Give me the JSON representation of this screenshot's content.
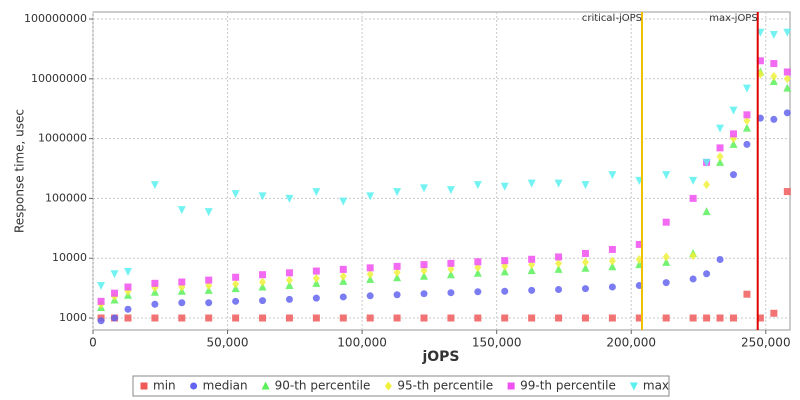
{
  "chart_data": {
    "type": "scatter",
    "x_label": "jOPS",
    "y_label": "Response time, usec",
    "log_y": true,
    "grid": true,
    "legend": "bottom",
    "xlim": [
      0,
      259000
    ],
    "ylim": [
      630,
      131000000
    ],
    "xticks": [
      {
        "value": 0,
        "label": "0"
      },
      {
        "value": 50000,
        "label": "50,000"
      },
      {
        "value": 100000,
        "label": "100,000"
      },
      {
        "value": 150000,
        "label": "150,000"
      },
      {
        "value": 200000,
        "label": "200,000"
      },
      {
        "value": 250000,
        "label": "250,000"
      }
    ],
    "yticks": [
      1000,
      10000,
      100000,
      1000000,
      10000000,
      100000000
    ],
    "annotations": [
      {
        "label": "critical-jOPS",
        "x": 204000,
        "color": "#f0c000"
      },
      {
        "label": "max-jOPS",
        "x": 247000,
        "color": "#e00000"
      }
    ],
    "x": [
      3000,
      8000,
      13000,
      23000,
      33000,
      43000,
      53000,
      63000,
      73000,
      83000,
      93000,
      103000,
      113000,
      123000,
      133000,
      143000,
      153000,
      163000,
      173000,
      183000,
      193000,
      203000,
      213000,
      223000,
      228000,
      233000,
      238000,
      243000,
      248000,
      253000,
      258000
    ],
    "series": [
      {
        "name": "min",
        "color": "#f05a5a",
        "marker": "square",
        "values": [
          1000,
          1000,
          1000,
          1000,
          1000,
          1000,
          1000,
          1000,
          1000,
          1000,
          1000,
          1000,
          1000,
          1000,
          1000,
          1000,
          1000,
          1000,
          1000,
          1000,
          1000,
          1000,
          1000,
          1000,
          1000,
          1000,
          1000,
          2500,
          1000,
          1200,
          130000
        ]
      },
      {
        "name": "median",
        "color": "#6464f0",
        "marker": "circle",
        "values": [
          900,
          1000,
          1400,
          1700,
          1800,
          1800,
          1900,
          1950,
          2050,
          2150,
          2250,
          2350,
          2450,
          2550,
          2650,
          2750,
          2800,
          2900,
          3000,
          3100,
          3300,
          3500,
          3900,
          4500,
          5500,
          9500,
          250000,
          800000,
          2200000,
          2100000,
          2700000
        ]
      },
      {
        "name": "90-th percentile",
        "color": "#5af05a",
        "marker": "triangle",
        "values": [
          1500,
          2000,
          2400,
          2700,
          2800,
          2900,
          3100,
          3300,
          3500,
          3800,
          4100,
          4400,
          4700,
          5000,
          5300,
          5600,
          5900,
          6200,
          6500,
          6800,
          7200,
          7800,
          8500,
          12000,
          60000,
          400000,
          800000,
          1500000,
          13000000,
          9000000,
          7000000
        ]
      },
      {
        "name": "95-th percentile",
        "color": "#f0f03c",
        "marker": "diamond",
        "values": [
          1700,
          2300,
          2800,
          3200,
          3300,
          3500,
          3700,
          4000,
          4300,
          4600,
          5000,
          5400,
          5800,
          6200,
          6600,
          7000,
          7400,
          7800,
          8200,
          8600,
          9000,
          9500,
          10500,
          11000,
          170000,
          500000,
          1000000,
          2000000,
          12000000,
          11000000,
          10000000
        ]
      },
      {
        "name": "99-th percentile",
        "color": "#f050f0",
        "marker": "square",
        "values": [
          1900,
          2600,
          3300,
          3800,
          4000,
          4300,
          4800,
          5300,
          5700,
          6100,
          6500,
          6900,
          7300,
          7800,
          8200,
          8700,
          9100,
          9600,
          10500,
          12000,
          14000,
          17000,
          40000,
          100000,
          400000,
          700000,
          1200000,
          2500000,
          20000000,
          18000000,
          13000000
        ]
      },
      {
        "name": "max",
        "color": "#5af0f0",
        "marker": "triangle-down",
        "values": [
          3500,
          5500,
          6000,
          170000,
          65000,
          60000,
          120000,
          110000,
          100000,
          130000,
          90000,
          110000,
          130000,
          150000,
          140000,
          170000,
          160000,
          180000,
          180000,
          170000,
          250000,
          200000,
          250000,
          200000,
          400000,
          1500000,
          3000000,
          7000000,
          60000000,
          55000000,
          60000000
        ]
      }
    ]
  }
}
